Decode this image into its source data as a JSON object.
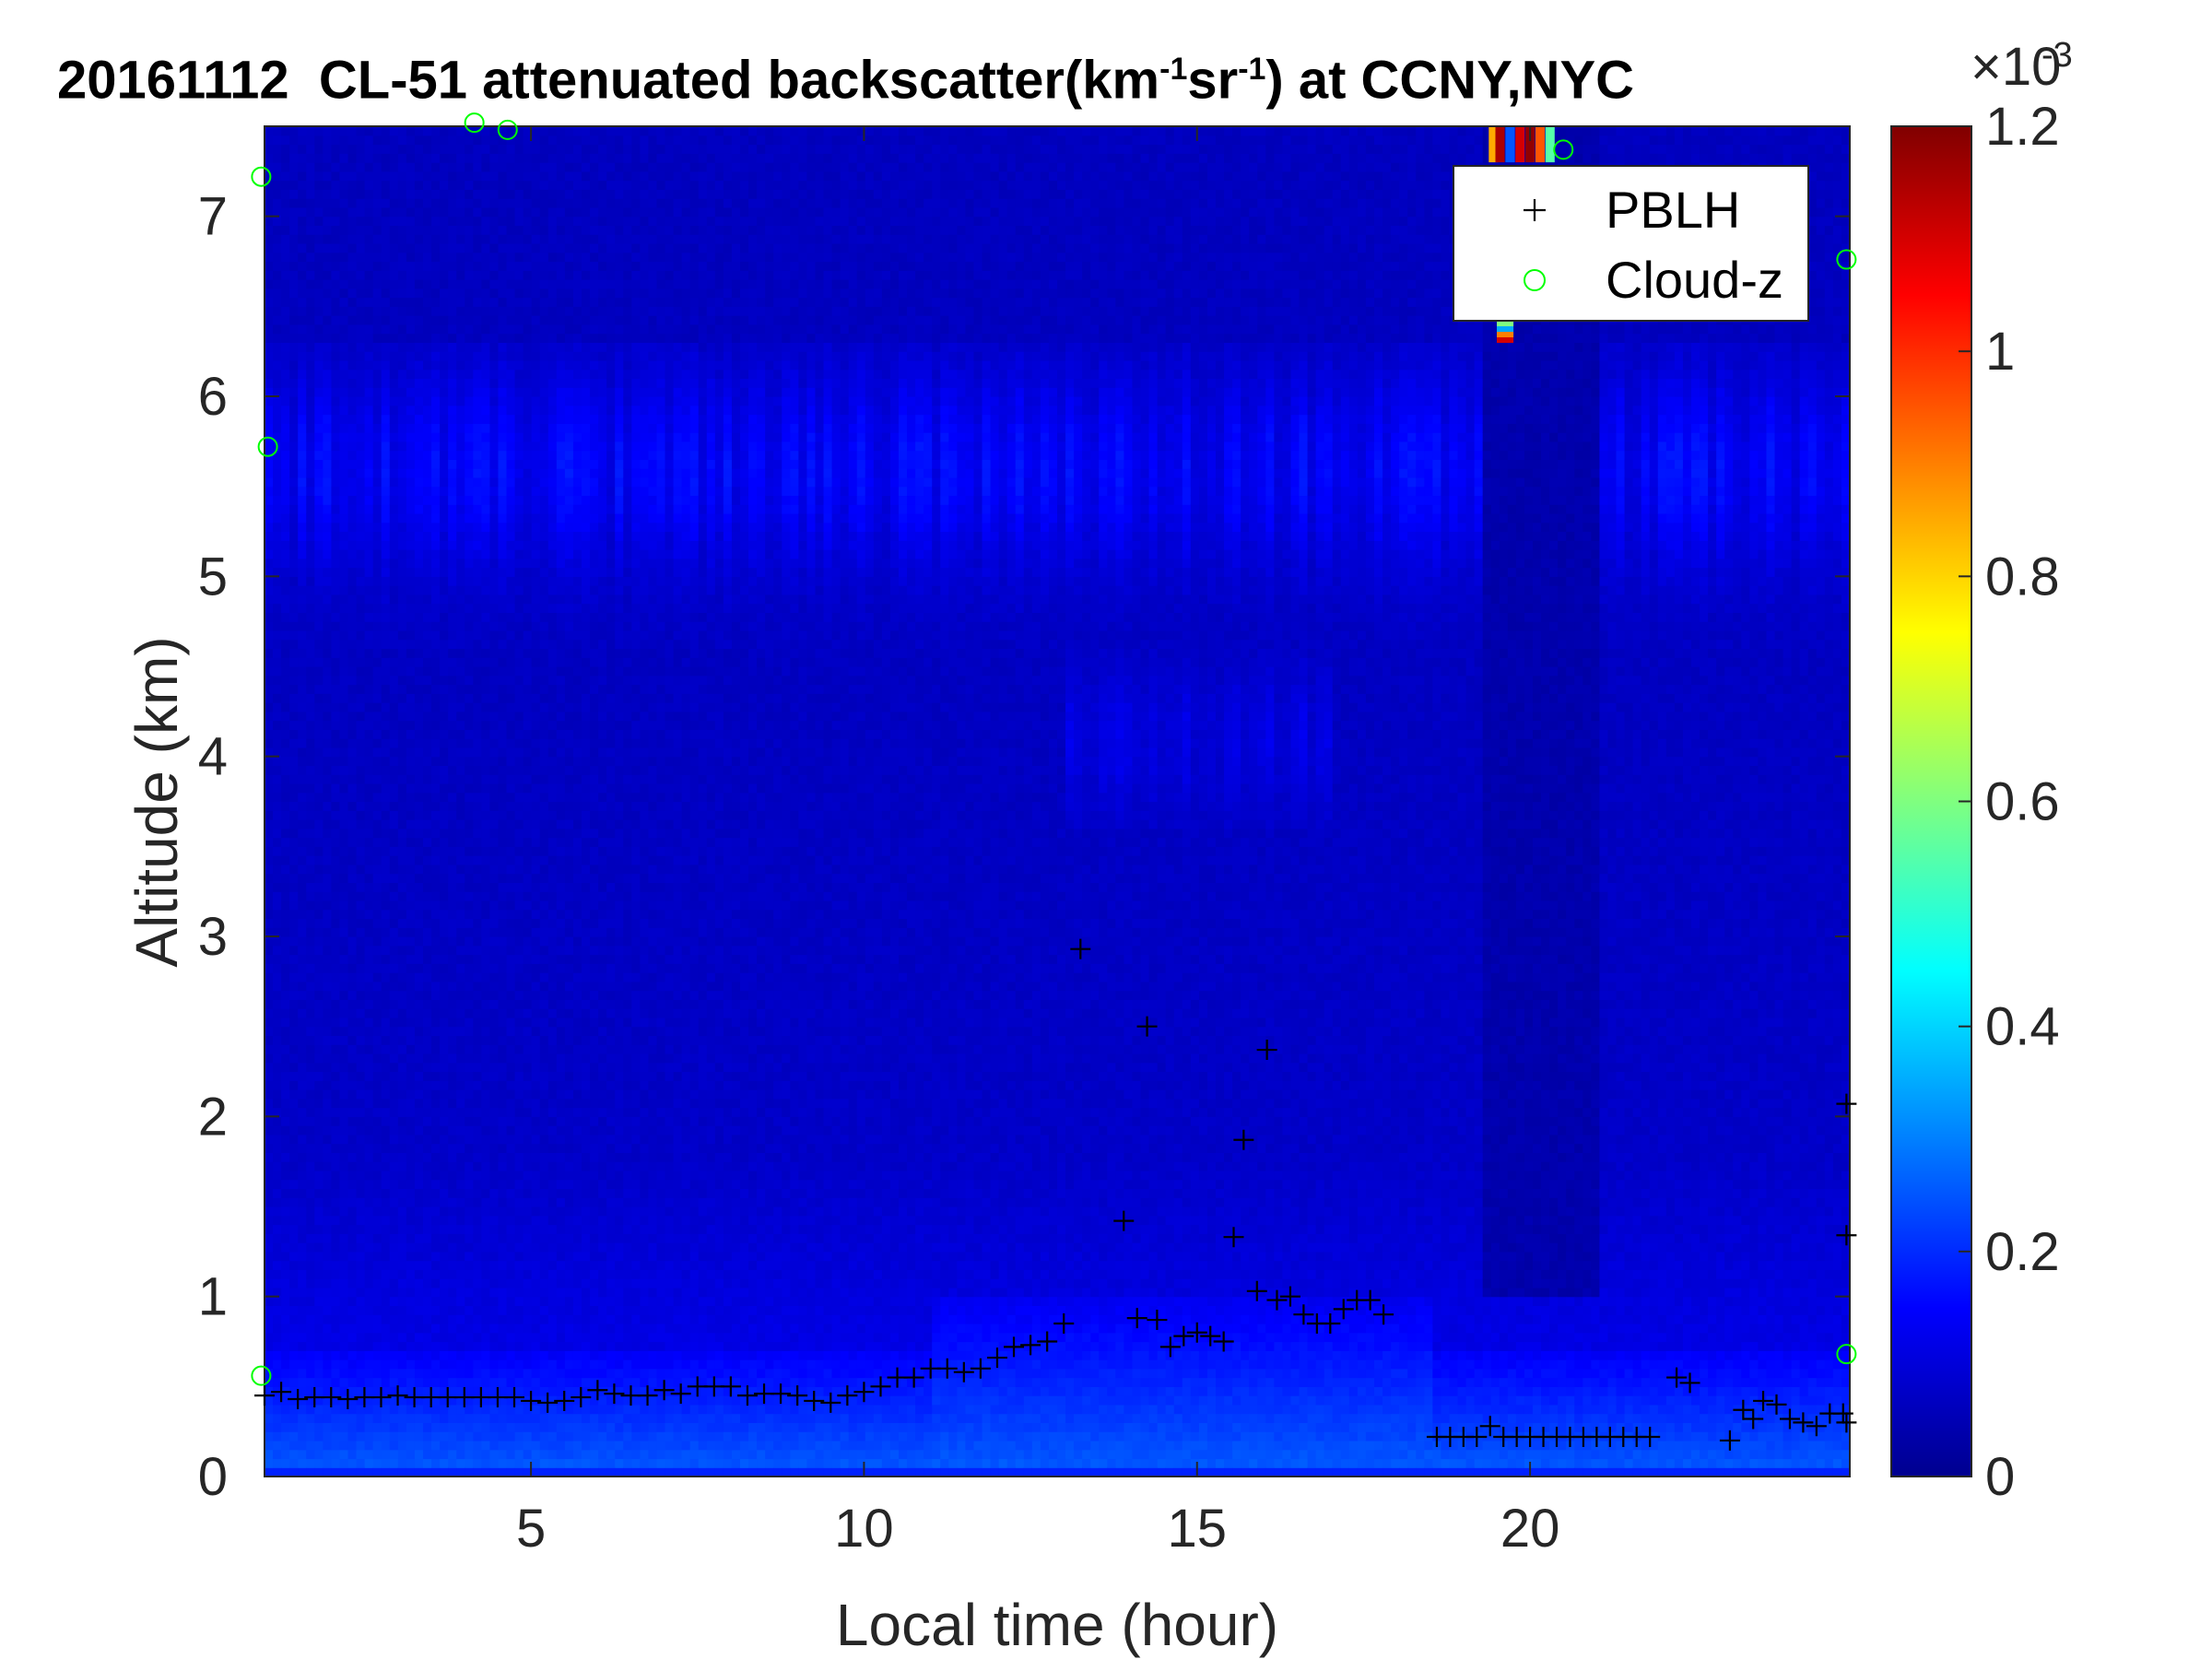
{
  "chart_data": {
    "type": "heatmap",
    "title": {
      "date": "20161112",
      "instrument": "CL-51",
      "quantity": "attenuated backscatter(km",
      "sup1": "-1",
      "unit_mid": "sr",
      "sup2": "-1",
      "location": ") at CCNY,NYC"
    },
    "xlabel": "Local time (hour)",
    "ylabel": "Altitude (km)",
    "xlim": [
      1.0,
      24.8
    ],
    "ylim": [
      0,
      7.5
    ],
    "xticks": [
      5,
      10,
      15,
      20
    ],
    "yticks": [
      0,
      1,
      2,
      3,
      4,
      5,
      6,
      7
    ],
    "colorbar": {
      "range": [
        0,
        0.0012
      ],
      "ticks": [
        "0",
        "0.2",
        "0.4",
        "0.6",
        "0.8",
        "1",
        "1.2"
      ],
      "tick_values": [
        0,
        0.2,
        0.4,
        0.6,
        0.8,
        1.0,
        1.2
      ],
      "exponent_label": "×10",
      "exponent_sup": "-3",
      "colormap": "jet"
    },
    "legend": {
      "placement": "top-right",
      "entries": [
        {
          "label": "PBLH",
          "marker": "+",
          "color": "#000000"
        },
        {
          "label": "Cloud-z",
          "marker": "o",
          "color": "#00ff00"
        }
      ]
    },
    "series": [
      {
        "name": "PBLH",
        "marker": "+",
        "x": [
          1.0,
          1.25,
          1.5,
          1.75,
          2.0,
          2.25,
          2.5,
          2.75,
          3.0,
          3.25,
          3.5,
          3.75,
          4.0,
          4.25,
          4.5,
          4.75,
          5.0,
          5.25,
          5.5,
          5.75,
          6.0,
          6.25,
          6.5,
          6.75,
          7.0,
          7.25,
          7.5,
          7.75,
          8.0,
          8.25,
          8.5,
          8.75,
          9.0,
          9.25,
          9.5,
          9.75,
          10.0,
          10.25,
          10.5,
          10.75,
          11.0,
          11.25,
          11.5,
          11.75,
          12.0,
          12.25,
          12.5,
          12.75,
          13.0,
          13.25,
          13.9,
          14.1,
          14.25,
          14.4,
          14.6,
          14.8,
          15.0,
          15.2,
          15.4,
          15.55,
          15.7,
          15.9,
          16.05,
          16.2,
          16.4,
          16.6,
          16.8,
          17.0,
          17.2,
          17.4,
          17.6,
          17.8,
          18.6,
          18.8,
          19.0,
          19.2,
          19.4,
          19.6,
          19.8,
          20.0,
          20.2,
          20.4,
          20.6,
          20.8,
          21.0,
          21.2,
          21.4,
          21.6,
          21.8,
          22.2,
          22.4,
          23.0,
          23.2,
          23.35,
          23.5,
          23.7,
          23.9,
          24.1,
          24.3,
          24.5,
          24.7,
          24.75,
          24.75,
          24.75
        ],
        "y": [
          0.45,
          0.47,
          0.43,
          0.44,
          0.44,
          0.43,
          0.44,
          0.44,
          0.45,
          0.44,
          0.44,
          0.44,
          0.44,
          0.44,
          0.44,
          0.44,
          0.42,
          0.41,
          0.42,
          0.44,
          0.48,
          0.46,
          0.45,
          0.45,
          0.48,
          0.46,
          0.5,
          0.5,
          0.5,
          0.45,
          0.46,
          0.46,
          0.45,
          0.42,
          0.41,
          0.45,
          0.47,
          0.5,
          0.55,
          0.55,
          0.6,
          0.6,
          0.58,
          0.6,
          0.66,
          0.72,
          0.73,
          0.75,
          0.85,
          2.93,
          1.42,
          0.88,
          2.5,
          0.87,
          0.72,
          0.78,
          0.8,
          0.78,
          0.75,
          1.33,
          1.87,
          1.03,
          2.37,
          0.98,
          1.0,
          0.9,
          0.85,
          0.85,
          0.93,
          0.98,
          0.98,
          0.9,
          0.22,
          0.22,
          0.22,
          0.22,
          0.28,
          0.22,
          0.22,
          0.22,
          0.22,
          0.22,
          0.22,
          0.22,
          0.22,
          0.22,
          0.22,
          0.22,
          0.22,
          0.55,
          0.52,
          0.2,
          0.37,
          0.32,
          0.42,
          0.4,
          0.32,
          0.3,
          0.28,
          0.35,
          0.35,
          0.3,
          2.07,
          1.34
        ]
      },
      {
        "name": "Cloud-z",
        "marker": "o",
        "x": [
          0.95,
          1.05,
          4.15,
          4.65,
          20.5,
          24.75,
          24.75,
          0.95
        ],
        "y": [
          7.22,
          5.72,
          7.52,
          7.48,
          7.37,
          6.76,
          0.68,
          0.56
        ]
      }
    ]
  }
}
